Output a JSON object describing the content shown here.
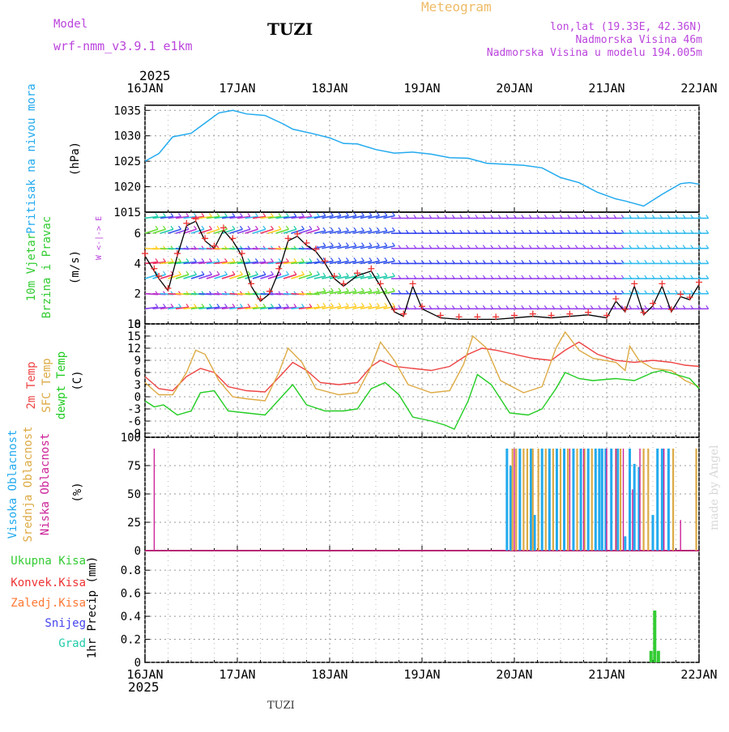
{
  "header": {
    "model_label": "Model",
    "model_name": "wrf-nmm_v3.9.1 e1km",
    "station": "TUZI",
    "title": "Meteogram",
    "coords": "lon,lat (19.33E, 42.36N)",
    "altitude": "Nadmorska Visina 46m",
    "model_altitude": "Nadmorska Visina u modelu 194.005m",
    "year_top": "2025",
    "year_bottom": "2025",
    "footer_station": "TUZI",
    "credit": "made by Angel"
  },
  "colors": {
    "pressure": "#22aaee",
    "temp2m": "#ee4444",
    "sfc": "#ddaa44",
    "dewpt": "#22cc22",
    "purple": "#bb44dd",
    "precip_total": "#33cc33"
  },
  "chart_data": [
    {
      "type": "line",
      "panel": "pressure",
      "ylabel_1": "Pritisak na nivou mora",
      "ylabel_2": "(hPa)",
      "x_ticks": [
        "16JAN",
        "17JAN",
        "18JAN",
        "19JAN",
        "20JAN",
        "21JAN",
        "22JAN"
      ],
      "x_range_days": [
        16,
        22
      ],
      "y_ticks": [
        1015,
        1020,
        1025,
        1030,
        1035
      ],
      "ylim": [
        1015,
        1036
      ],
      "x": [
        16.0,
        16.15,
        16.3,
        16.5,
        16.65,
        16.8,
        16.95,
        17.1,
        17.3,
        17.5,
        17.6,
        17.8,
        18.0,
        18.15,
        18.3,
        18.5,
        18.7,
        18.9,
        19.1,
        19.3,
        19.5,
        19.7,
        19.9,
        20.1,
        20.3,
        20.5,
        20.7,
        20.9,
        21.1,
        21.2,
        21.3,
        21.4,
        21.6,
        21.8,
        21.9,
        22.0
      ],
      "y": [
        1025.0,
        1026.5,
        1029.8,
        1030.5,
        1032.5,
        1034.5,
        1035.0,
        1034.3,
        1034.0,
        1032.3,
        1031.3,
        1030.5,
        1029.6,
        1028.5,
        1028.4,
        1027.3,
        1026.6,
        1026.8,
        1026.4,
        1025.7,
        1025.6,
        1024.6,
        1024.4,
        1024.2,
        1023.7,
        1021.8,
        1020.8,
        1018.9,
        1017.6,
        1017.2,
        1016.7,
        1016.2,
        1018.5,
        1020.6,
        1020.8,
        1020.5
      ]
    },
    {
      "type": "line",
      "panel": "wind",
      "ylabel_1": "10m Vjetar",
      "ylabel_2": "Brzina i Pravac",
      "ylabel_3": "(m/s)",
      "compass": "W <-|-> E",
      "y_ticks": [
        0,
        2,
        4,
        6
      ],
      "ylim": [
        0,
        7.4
      ],
      "x": [
        16.0,
        16.1,
        16.15,
        16.25,
        16.35,
        16.45,
        16.55,
        16.65,
        16.75,
        16.85,
        16.95,
        17.05,
        17.15,
        17.25,
        17.35,
        17.45,
        17.55,
        17.65,
        17.75,
        17.85,
        17.95,
        18.05,
        18.15,
        18.3,
        18.45,
        18.55,
        18.7,
        18.8,
        18.9,
        19.0,
        19.2,
        19.4,
        19.6,
        19.8,
        20.0,
        20.2,
        20.4,
        20.6,
        20.8,
        21.0,
        21.1,
        21.2,
        21.3,
        21.4,
        21.5,
        21.6,
        21.7,
        21.8,
        21.9,
        22.0
      ],
      "y": [
        4.5,
        3.5,
        3.0,
        2.2,
        4.5,
        6.5,
        6.8,
        5.5,
        5.0,
        6.2,
        5.5,
        4.5,
        2.5,
        1.5,
        2.0,
        3.5,
        5.5,
        5.8,
        5.2,
        4.8,
        4.0,
        3.0,
        2.5,
        3.2,
        3.5,
        2.5,
        0.8,
        0.5,
        2.5,
        1.0,
        0.4,
        0.3,
        0.3,
        0.3,
        0.4,
        0.5,
        0.4,
        0.5,
        0.6,
        0.4,
        1.5,
        0.8,
        2.5,
        0.6,
        1.2,
        2.5,
        0.8,
        1.8,
        1.6,
        2.6
      ]
    },
    {
      "type": "line",
      "panel": "temperature",
      "ylabel_1": "2m Temp",
      "ylabel_2": "SFC Temp",
      "ylabel_3": "dewpt Temp",
      "ylabel_4": "(C)",
      "y_ticks": [
        -9,
        -6,
        -3,
        0,
        3,
        6,
        9,
        12,
        15,
        18
      ],
      "ylim": [
        -10,
        18
      ],
      "series": [
        {
          "name": "2m Temp",
          "x": [
            16.0,
            16.15,
            16.3,
            16.45,
            16.6,
            16.75,
            16.9,
            17.1,
            17.3,
            17.5,
            17.6,
            17.75,
            17.9,
            18.1,
            18.3,
            18.45,
            18.55,
            18.7,
            18.9,
            19.1,
            19.3,
            19.5,
            19.65,
            19.8,
            20.0,
            20.2,
            20.4,
            20.55,
            20.7,
            20.9,
            21.1,
            21.3,
            21.5,
            21.7,
            21.85,
            22.0
          ],
          "y": [
            5.0,
            2.0,
            1.5,
            5.0,
            7.0,
            6.0,
            2.5,
            1.5,
            1.2,
            6.0,
            8.5,
            6.5,
            3.5,
            3.0,
            3.5,
            7.5,
            9.0,
            7.5,
            7.0,
            6.5,
            7.5,
            10.5,
            12.0,
            11.5,
            10.5,
            9.5,
            9.0,
            11.5,
            13.5,
            10.5,
            9.0,
            8.5,
            9.0,
            8.5,
            7.8,
            7.5
          ]
        },
        {
          "name": "SFC Temp",
          "x": [
            16.0,
            16.15,
            16.3,
            16.45,
            16.55,
            16.65,
            16.8,
            16.95,
            17.1,
            17.3,
            17.45,
            17.55,
            17.7,
            17.85,
            18.1,
            18.3,
            18.45,
            18.55,
            18.7,
            18.85,
            19.1,
            19.3,
            19.45,
            19.55,
            19.7,
            19.85,
            20.1,
            20.3,
            20.45,
            20.55,
            20.7,
            20.85,
            21.1,
            21.2,
            21.25,
            21.35,
            21.5,
            21.7,
            21.85,
            22.0
          ],
          "y": [
            3.5,
            0.5,
            0.5,
            6.0,
            11.5,
            10.5,
            4.0,
            0.0,
            -0.5,
            -1.0,
            6.0,
            12.0,
            8.5,
            2.0,
            0.5,
            1.0,
            7.5,
            13.5,
            9.0,
            3.0,
            1.0,
            1.5,
            8.0,
            15.0,
            12.0,
            4.0,
            1.0,
            2.5,
            12.0,
            16.0,
            11.5,
            9.5,
            8.5,
            6.5,
            12.5,
            9.0,
            7.0,
            6.5,
            4.0,
            2.5
          ]
        },
        {
          "name": "dewpt Temp",
          "x": [
            16.0,
            16.1,
            16.2,
            16.35,
            16.5,
            16.6,
            16.75,
            16.9,
            17.1,
            17.3,
            17.5,
            17.6,
            17.75,
            17.95,
            18.15,
            18.3,
            18.45,
            18.6,
            18.75,
            18.9,
            19.1,
            19.25,
            19.35,
            19.5,
            19.6,
            19.75,
            19.95,
            20.15,
            20.3,
            20.45,
            20.55,
            20.7,
            20.85,
            21.1,
            21.3,
            21.5,
            21.6,
            21.75,
            21.9,
            22.0
          ],
          "y": [
            -1.0,
            -2.5,
            -2.0,
            -4.5,
            -3.5,
            1.0,
            1.5,
            -3.5,
            -4.0,
            -4.5,
            0.5,
            3.0,
            -2.0,
            -3.5,
            -3.5,
            -3.0,
            2.0,
            3.5,
            0.5,
            -5.0,
            -6.0,
            -7.0,
            -8.0,
            -1.0,
            5.5,
            3.0,
            -4.0,
            -4.5,
            -3.0,
            2.0,
            6.0,
            4.5,
            4.0,
            4.5,
            4.0,
            6.0,
            6.5,
            5.5,
            4.5,
            2.0
          ]
        }
      ]
    },
    {
      "type": "bar",
      "panel": "cloudiness",
      "ylabel_1": "Visoka Oblacnost",
      "ylabel_2": "Srednja Oblacnost",
      "ylabel_3": "Niska Oblacnost",
      "ylabel_4": "(%)",
      "y_ticks": [
        0,
        25,
        50,
        75,
        100
      ],
      "ylim": [
        0,
        100
      ],
      "series": [
        {
          "name": "Visoka Oblacnost",
          "x": [
            19.92,
            19.96,
            20.06,
            20.18,
            20.22,
            20.3,
            20.38,
            20.46,
            20.54,
            20.64,
            20.72,
            20.8,
            20.88,
            20.92,
            20.95,
            20.99,
            21.05,
            21.12,
            21.2,
            21.25,
            21.3,
            21.35,
            21.5,
            21.55,
            21.6,
            21.67
          ],
          "y": [
            100,
            83,
            100,
            100,
            35,
            100,
            100,
            100,
            100,
            100,
            100,
            100,
            100,
            100,
            100,
            100,
            100,
            100,
            14,
            100,
            85,
            82,
            35,
            100,
            100,
            100
          ]
        },
        {
          "name": "Srednja Oblacnost",
          "x": [
            19.98,
            20.02,
            20.1,
            20.14,
            20.2,
            20.26,
            20.34,
            20.42,
            20.5,
            20.58,
            20.68,
            20.76,
            20.84,
            21.1,
            21.15,
            21.4,
            21.45,
            21.72,
            21.97
          ],
          "y": [
            100,
            100,
            100,
            100,
            100,
            100,
            100,
            100,
            100,
            100,
            100,
            100,
            100,
            100,
            100,
            100,
            100,
            100,
            100
          ]
        },
        {
          "name": "Niska Oblacnost",
          "x": [
            16.1,
            20.0,
            20.6,
            20.75,
            21.0,
            21.1,
            21.18,
            21.28,
            21.36,
            21.62,
            21.8
          ],
          "y": [
            100,
            100,
            100,
            100,
            100,
            100,
            100,
            60,
            100,
            100,
            30
          ]
        }
      ]
    },
    {
      "type": "bar",
      "panel": "precipitation",
      "ylabel": "1hr Precip (mm)",
      "legend": [
        "Ukupna Kisa",
        "Konvek.Kisa",
        "Zaledj.Kisa",
        "Snijeg",
        "Grad"
      ],
      "legend_colors": [
        "#33cc33",
        "#ee3333",
        "#ff7733",
        "#4444ee",
        "#22ccaa"
      ],
      "y_ticks": [
        0,
        0.2,
        0.4,
        0.6,
        0.8
      ],
      "ylim": [
        0,
        0.97
      ],
      "x": [
        21.48,
        21.52,
        21.56
      ],
      "y": [
        0.1,
        0.45,
        0.1
      ]
    }
  ]
}
